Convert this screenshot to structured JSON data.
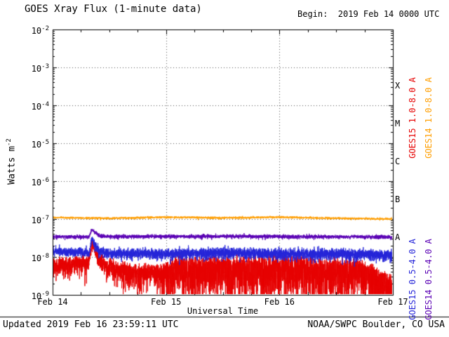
{
  "header": {
    "title": "GOES Xray Flux (1-minute data)",
    "begin_label": "Begin:  2019 Feb 14 0000 UTC"
  },
  "footer": {
    "updated": "Updated 2019 Feb 16 23:59:11 UTC",
    "source": "NOAA/SWPC Boulder, CO USA"
  },
  "chart_data": {
    "type": "line",
    "title": "GOES Xray Flux (1-minute data)",
    "xlabel": "Universal Time",
    "ylabel": "Watts m-2",
    "ylabel_parts": {
      "base": "Watts m",
      "exp": "-2"
    },
    "x_range_days": [
      0,
      3
    ],
    "y_log_range": [
      -9,
      -2
    ],
    "y_tick_exponents": [
      -2,
      -3,
      -4,
      -5,
      -6,
      -7,
      -8,
      -9
    ],
    "x_ticks": [
      {
        "label": "Feb 14",
        "day": 0
      },
      {
        "label": "Feb 15",
        "day": 1
      },
      {
        "label": "Feb 16",
        "day": 2
      },
      {
        "label": "Feb 17",
        "day": 3
      }
    ],
    "flare_classes": [
      {
        "label": "X",
        "log_mid": -3.5
      },
      {
        "label": "M",
        "log_mid": -4.5
      },
      {
        "label": "C",
        "log_mid": -5.5
      },
      {
        "label": "B",
        "log_mid": -6.5
      },
      {
        "label": "A",
        "log_mid": -7.5
      }
    ],
    "grid": {
      "h_line_exponents": [
        -3,
        -4,
        -5,
        -6,
        -7,
        -8
      ],
      "v_line_days": [
        1,
        2
      ]
    },
    "series": [
      {
        "name": "GOES15 1.0-8.0 A",
        "color": "#e60000",
        "seed": 11,
        "base": [
          [
            0,
            -8.1
          ],
          [
            0.3,
            -8.02
          ],
          [
            0.325,
            -8.0
          ],
          [
            0.348,
            -7.58
          ],
          [
            0.4,
            -7.92
          ],
          [
            0.5,
            -8.12
          ],
          [
            0.75,
            -8.25
          ],
          [
            0.95,
            -8.2
          ],
          [
            1.1,
            -8.0
          ],
          [
            1.5,
            -8.02
          ],
          [
            2.0,
            -7.98
          ],
          [
            2.4,
            -8.05
          ],
          [
            2.7,
            -8.08
          ],
          [
            2.85,
            -8.3
          ],
          [
            3.0,
            -8.45
          ]
        ],
        "jitter": 0.06,
        "down_spike": [
          [
            0,
            0.22
          ],
          [
            0.3,
            0.18
          ],
          [
            0.33,
            0.07
          ],
          [
            0.36,
            0.07
          ],
          [
            0.45,
            0.2
          ],
          [
            0.9,
            0.3
          ],
          [
            1.05,
            0.5
          ],
          [
            1.5,
            0.55
          ],
          [
            2.0,
            0.5
          ],
          [
            2.5,
            0.55
          ],
          [
            2.8,
            0.5
          ],
          [
            3.0,
            0.45
          ]
        ]
      },
      {
        "name": "GOES14 1.0-8.0 A",
        "color": "#ff9e00",
        "seed": 22,
        "base": [
          [
            0,
            -6.95
          ],
          [
            0.5,
            -6.97
          ],
          [
            1.0,
            -6.94
          ],
          [
            1.5,
            -6.96
          ],
          [
            2.0,
            -6.94
          ],
          [
            2.5,
            -6.97
          ],
          [
            3.0,
            -6.99
          ]
        ],
        "jitter": 0.012,
        "down_spike": [
          [
            0,
            0.012
          ],
          [
            3,
            0.012
          ]
        ]
      },
      {
        "name": "GOES15 0.5-4.0 A",
        "color": "#2424d8",
        "seed": 33,
        "base": [
          [
            0,
            -7.82
          ],
          [
            0.3,
            -7.84
          ],
          [
            0.325,
            -7.85
          ],
          [
            0.345,
            -7.48
          ],
          [
            0.4,
            -7.78
          ],
          [
            0.48,
            -7.85
          ],
          [
            1.0,
            -7.85
          ],
          [
            1.5,
            -7.82
          ],
          [
            2.0,
            -7.85
          ],
          [
            2.5,
            -7.84
          ],
          [
            3.0,
            -7.88
          ]
        ],
        "jitter": 0.05,
        "down_spike": [
          [
            0,
            0.04
          ],
          [
            1.0,
            0.09
          ],
          [
            3.0,
            0.1
          ]
        ]
      },
      {
        "name": "GOES14 0.5-4.0 A",
        "color": "#5a00b4",
        "seed": 44,
        "base": [
          [
            0,
            -7.45
          ],
          [
            0.32,
            -7.46
          ],
          [
            0.345,
            -7.27
          ],
          [
            0.42,
            -7.42
          ],
          [
            0.5,
            -7.45
          ],
          [
            1.5,
            -7.44
          ],
          [
            3.0,
            -7.46
          ]
        ],
        "jitter": 0.022,
        "down_spike": [
          [
            0,
            0.02
          ],
          [
            3,
            0.02
          ]
        ]
      }
    ],
    "legend_right": [
      {
        "label": "GOES15 1.0-8.0 A",
        "color": "#e60000"
      },
      {
        "label": "GOES14 1.0-8.0 A",
        "color": "#ff9e00"
      },
      {
        "label": "GOES15 0.5-4.0 A",
        "color": "#2424d8"
      },
      {
        "label": "GOES14 0.5-4.0 A",
        "color": "#5a00b4"
      }
    ]
  }
}
